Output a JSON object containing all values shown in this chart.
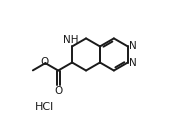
{
  "background_color": "#ffffff",
  "bond_color": "#1a1a1a",
  "atom_color": "#1a1a1a",
  "bond_width": 1.4,
  "font_size_atoms": 7.5,
  "font_size_hcl": 8,
  "hcl_text": "HCl",
  "nh_text": "NH",
  "o_text": "O",
  "n_text": "N",
  "figsize": [
    1.82,
    1.25
  ],
  "dpi": 100,
  "bl": 0.13
}
